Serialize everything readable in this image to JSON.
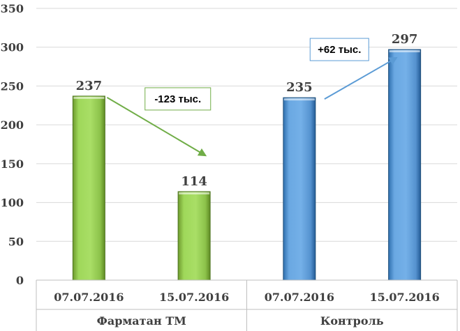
{
  "chart_data": {
    "type": "bar",
    "ylim": [
      0,
      350
    ],
    "yticks": [
      "0",
      "50",
      "100",
      "150",
      "200",
      "250",
      "300",
      "350"
    ],
    "grid": true,
    "groups": [
      {
        "name": "Фарматан ТМ",
        "color": "#92D050",
        "bars": [
          {
            "category": "07.07.2016",
            "value": 237,
            "label": "237"
          },
          {
            "category": "15.07.2016",
            "value": 114,
            "label": "114"
          }
        ],
        "annotation": {
          "text": "-123 тыс.",
          "direction": "down",
          "color": "#70AD47"
        }
      },
      {
        "name": "Контроль",
        "color": "#5B9BD5",
        "bars": [
          {
            "category": "07.07.2016",
            "value": 235,
            "label": "235"
          },
          {
            "category": "15.07.2016",
            "value": 297,
            "label": "297"
          }
        ],
        "annotation": {
          "text": "+62 тыс.",
          "direction": "up",
          "color": "#5B9BD5"
        }
      }
    ]
  }
}
